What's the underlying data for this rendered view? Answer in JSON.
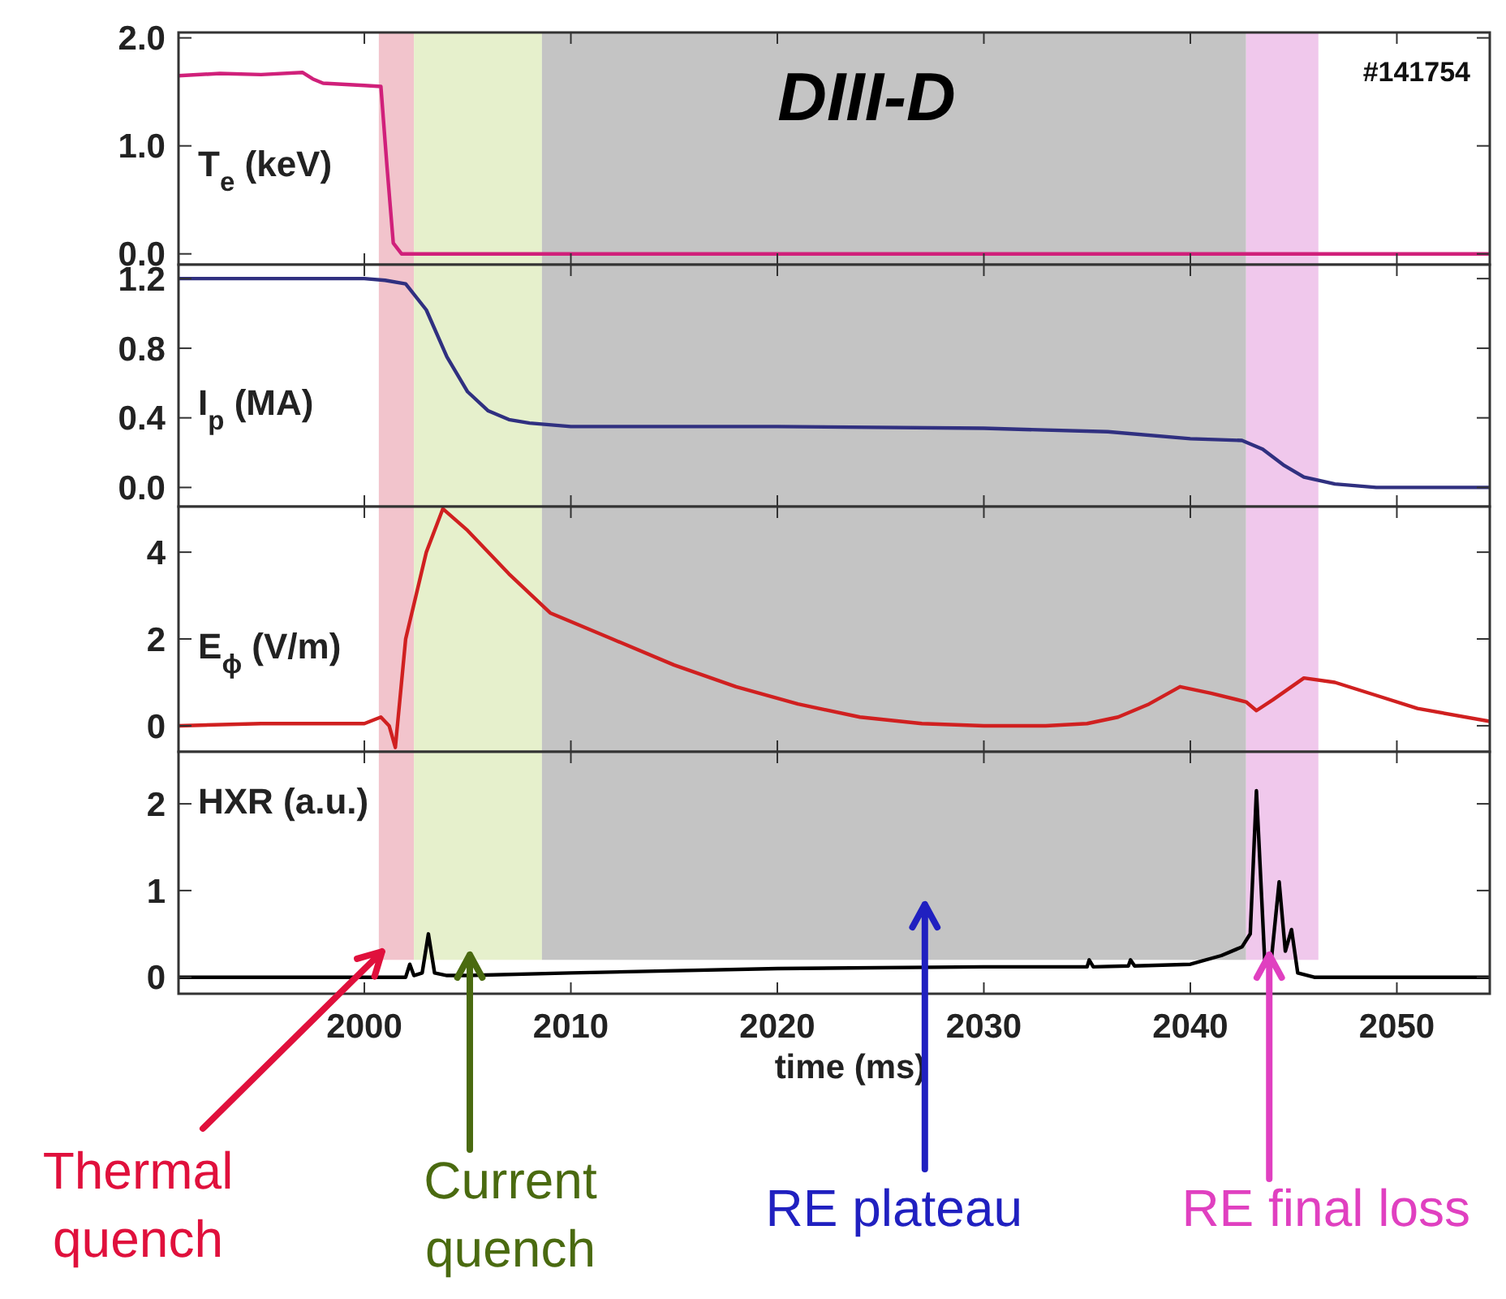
{
  "chart_data": [
    {
      "type": "line",
      "title": "DIII-D",
      "ylabel": "T$_{e}$ (keV)",
      "annotations": [
        "#141754"
      ],
      "xlim": [
        1991,
        2054.5
      ],
      "xticks": [
        2000,
        2010,
        2020,
        2030,
        2040,
        2050
      ],
      "ylim": [
        -0.1,
        2.05
      ],
      "yticks": [
        {
          "value": 0,
          "label": "0.0"
        },
        {
          "value": 1,
          "label": "1.0"
        },
        {
          "value": 2,
          "label": "2.0"
        }
      ],
      "tick_labels": "y",
      "grid": false,
      "bands": [
        {
          "axis": "x",
          "from": 2000.7,
          "to": 2002.4,
          "color": "#f2c4cc"
        },
        {
          "axis": "x",
          "from": 2002.4,
          "to": 2008.6,
          "color": "#e6f0cc"
        },
        {
          "axis": "x",
          "from": 2008.6,
          "to": 2042.7,
          "color": "#c4c4c4"
        },
        {
          "axis": "x",
          "from": 2042.7,
          "to": 2046.2,
          "color": "#f0c8ec"
        }
      ],
      "series": [
        {
          "color": "#d0207a",
          "x": [
            1991,
            1993,
            1995,
            1997,
            1997.5,
            1998,
            2000,
            2000.8,
            2001.1,
            2001.4,
            2001.8,
            2010,
            2030,
            2054.5
          ],
          "values": [
            1.65,
            1.67,
            1.66,
            1.68,
            1.62,
            1.58,
            1.56,
            1.55,
            0.8,
            0.1,
            0.0,
            0.0,
            0.0,
            0.0
          ]
        }
      ]
    },
    {
      "type": "line",
      "ylabel": "I$_{p}$ (MA)",
      "xlim": [
        1991,
        2054.5
      ],
      "xticks": [
        2000,
        2010,
        2020,
        2030,
        2040,
        2050
      ],
      "ylim": [
        -0.11,
        1.28
      ],
      "yticks": [
        {
          "value": 0,
          "label": "0.0"
        },
        0.4,
        0.8,
        1.2
      ],
      "tick_labels": "y",
      "grid": false,
      "bands": [
        {
          "axis": "x",
          "from": 2000.7,
          "to": 2002.4,
          "color": "#f2c4cc"
        },
        {
          "axis": "x",
          "from": 2002.4,
          "to": 2008.6,
          "color": "#e6f0cc"
        },
        {
          "axis": "x",
          "from": 2008.6,
          "to": 2042.7,
          "color": "#c4c4c4"
        },
        {
          "axis": "x",
          "from": 2042.7,
          "to": 2046.2,
          "color": "#f0c8ec"
        }
      ],
      "series": [
        {
          "color": "#303080",
          "x": [
            1991,
            2000,
            2001,
            2002,
            2003,
            2004,
            2005,
            2006,
            2007,
            2008,
            2010,
            2020,
            2030,
            2036,
            2040,
            2042.5,
            2043.5,
            2044.5,
            2045.5,
            2047,
            2049,
            2054.5
          ],
          "values": [
            1.2,
            1.2,
            1.19,
            1.17,
            1.02,
            0.75,
            0.55,
            0.44,
            0.39,
            0.37,
            0.35,
            0.35,
            0.34,
            0.32,
            0.28,
            0.27,
            0.22,
            0.13,
            0.06,
            0.02,
            0.0,
            0.0
          ]
        }
      ]
    },
    {
      "type": "line",
      "ylabel": "E$_{ϕ}$ (V/m)",
      "xlim": [
        1991,
        2054.5
      ],
      "xticks": [
        2000,
        2010,
        2020,
        2030,
        2040,
        2050
      ],
      "ylim": [
        -0.6,
        5.05
      ],
      "yticks": [
        0,
        2,
        4
      ],
      "tick_labels": "y",
      "grid": false,
      "bands": [
        {
          "axis": "x",
          "from": 2000.7,
          "to": 2002.4,
          "color": "#f2c4cc"
        },
        {
          "axis": "x",
          "from": 2002.4,
          "to": 2008.6,
          "color": "#e6f0cc"
        },
        {
          "axis": "x",
          "from": 2008.6,
          "to": 2042.7,
          "color": "#c4c4c4"
        },
        {
          "axis": "x",
          "from": 2042.7,
          "to": 2046.2,
          "color": "#f0c8ec"
        }
      ],
      "series": [
        {
          "color": "#d02020",
          "x": [
            1991,
            1995,
            2000,
            2000.8,
            2001.2,
            2001.5,
            2002,
            2003,
            2003.8,
            2005,
            2007,
            2009,
            2012,
            2015,
            2018,
            2021,
            2024,
            2027,
            2030,
            2033,
            2035,
            2036.5,
            2038,
            2039.5,
            2041,
            2042.7,
            2043.2,
            2044,
            2045.5,
            2047,
            2049,
            2051,
            2054.5
          ],
          "values": [
            0,
            0.05,
            0.05,
            0.2,
            0.0,
            -0.5,
            2.0,
            4.0,
            5.0,
            4.5,
            3.5,
            2.6,
            2.0,
            1.4,
            0.9,
            0.5,
            0.2,
            0.05,
            0.0,
            0.0,
            0.05,
            0.2,
            0.5,
            0.9,
            0.75,
            0.55,
            0.35,
            0.6,
            1.1,
            1.0,
            0.7,
            0.4,
            0.1
          ]
        }
      ]
    },
    {
      "type": "line",
      "ylabel": "HXR (a.u.)",
      "xlabel": "time (ms)",
      "xlim": [
        1991,
        2054.5
      ],
      "xticks": [
        2000,
        2010,
        2020,
        2030,
        2040,
        2050
      ],
      "ylim": [
        -0.19,
        2.6
      ],
      "yticks": [
        0,
        1,
        2
      ],
      "grid": false,
      "bands": [
        {
          "axis": "x",
          "from": 2000.7,
          "to": 2002.4,
          "color": "#f2c4cc",
          "label": "Thermal quench"
        },
        {
          "axis": "x",
          "from": 2002.4,
          "to": 2008.6,
          "color": "#e6f0cc",
          "label": "Current quench"
        },
        {
          "axis": "x",
          "from": 2008.6,
          "to": 2042.7,
          "color": "#c4c4c4",
          "label": "RE plateau"
        },
        {
          "axis": "x",
          "from": 2042.7,
          "to": 2046.2,
          "color": "#f0c8ec",
          "label": "RE final loss"
        }
      ],
      "series": [
        {
          "color": "#000000",
          "x": [
            1991,
            2002,
            2002.2,
            2002.4,
            2002.8,
            2003.1,
            2003.4,
            2004,
            2005,
            2010,
            2020,
            2030,
            2035,
            2035.1,
            2035.3,
            2037,
            2037.1,
            2037.3,
            2040,
            2041.5,
            2042.5,
            2042.9,
            2043.2,
            2043.6,
            2043.9,
            2044.3,
            2044.6,
            2044.9,
            2045.2,
            2046,
            2054.5
          ],
          "values": [
            0,
            0,
            0.15,
            0.02,
            0.05,
            0.5,
            0.05,
            0.02,
            0.02,
            0.05,
            0.1,
            0.12,
            0.12,
            0.2,
            0.12,
            0.13,
            0.2,
            0.13,
            0.15,
            0.25,
            0.35,
            0.5,
            2.15,
            0.2,
            0.15,
            1.1,
            0.3,
            0.55,
            0.05,
            0.0,
            0.0
          ]
        }
      ]
    }
  ]
}
